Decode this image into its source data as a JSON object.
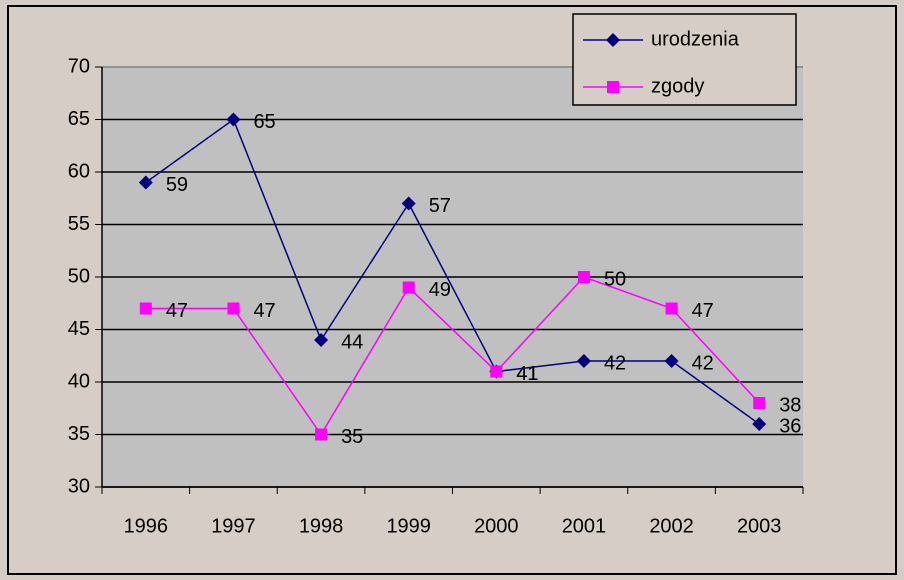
{
  "chart_data": {
    "type": "line",
    "categories": [
      "1996",
      "1997",
      "1998",
      "1999",
      "2000",
      "2001",
      "2002",
      "2003"
    ],
    "series": [
      {
        "name": "urodzenia",
        "color": "#000080",
        "marker": "diamond",
        "values": [
          59,
          65,
          44,
          57,
          41,
          42,
          42,
          36
        ]
      },
      {
        "name": "zgody",
        "color": "#ff00ff",
        "marker": "square",
        "values": [
          47,
          47,
          35,
          49,
          41,
          50,
          47,
          38
        ]
      }
    ],
    "ylim": [
      30,
      70
    ],
    "yticks": [
      30,
      35,
      40,
      45,
      50,
      55,
      60,
      65,
      70
    ],
    "grid": true,
    "legend": "top-right"
  }
}
